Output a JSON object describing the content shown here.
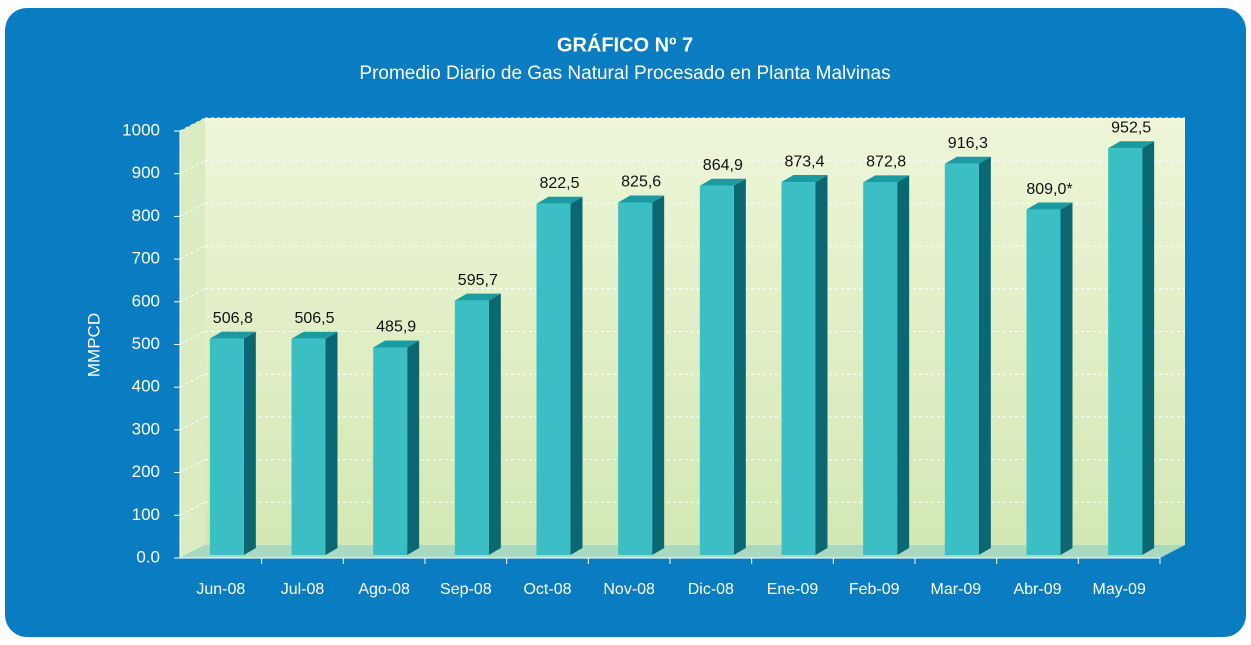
{
  "chart_data": {
    "type": "bar3d",
    "title": "GRÁFICO Nº 7",
    "subtitle": "Promedio Diario de Gas Natural Procesado en Planta Malvinas",
    "ylabel": "MMPCD",
    "categories": [
      "Jun-08",
      "Jul-08",
      "Ago-08",
      "Sep-08",
      "Oct-08",
      "Nov-08",
      "Dic-08",
      "Ene-09",
      "Feb-09",
      "Mar-09",
      "Abr-09",
      "May-09"
    ],
    "values": [
      506.8,
      506.5,
      485.9,
      595.7,
      822.5,
      825.6,
      864.9,
      873.4,
      872.8,
      916.3,
      809.0,
      952.5
    ],
    "value_labels": [
      "506,8",
      "506,5",
      "485,9",
      "595,7",
      "822,5",
      "825,6",
      "864,9",
      "873,4",
      "872,8",
      "916,3",
      "809,0*",
      "952,5"
    ],
    "color": "#3bbfc4",
    "ylim": [
      0,
      1000
    ],
    "yticks": [
      {
        "value": 0,
        "label": "0.0"
      },
      100,
      200,
      300,
      400,
      500,
      600,
      700,
      800,
      900,
      1000
    ],
    "grid": true
  }
}
